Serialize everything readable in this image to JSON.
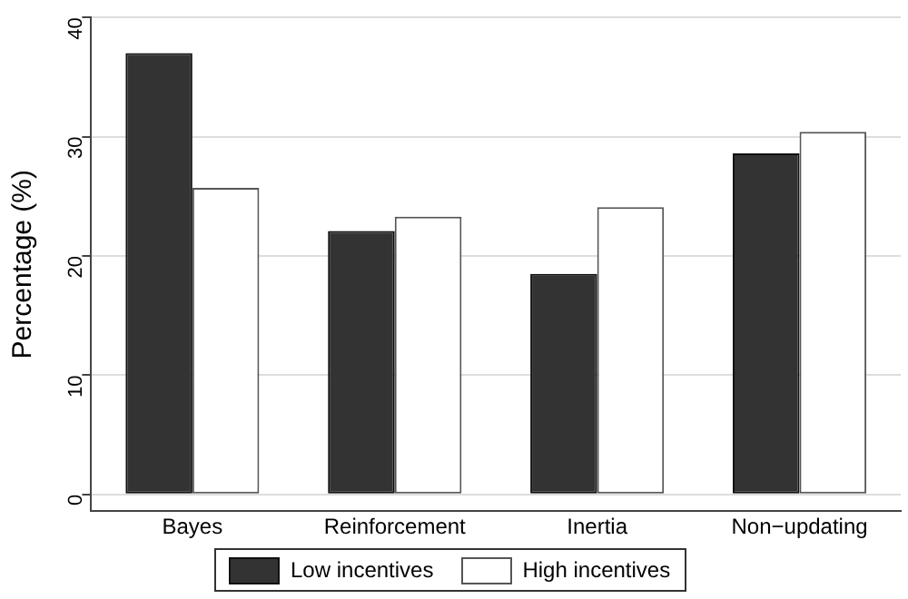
{
  "chart_data": {
    "type": "bar",
    "ylabel": "Percentage (%)",
    "categories": [
      "Bayes",
      "Reinforcement",
      "Inertia",
      "Non−updating"
    ],
    "series": [
      {
        "name": "Low incentives",
        "color": "#333333",
        "values": [
          37.0,
          22.1,
          18.5,
          28.6
        ]
      },
      {
        "name": "High incentives",
        "color": "#ffffff",
        "values": [
          25.7,
          23.3,
          24.1,
          30.4
        ]
      }
    ],
    "ylim": [
      -1.4,
      40
    ],
    "yticks": [
      0,
      10,
      20,
      30,
      40
    ],
    "grid": "y",
    "legend": "bottom"
  }
}
